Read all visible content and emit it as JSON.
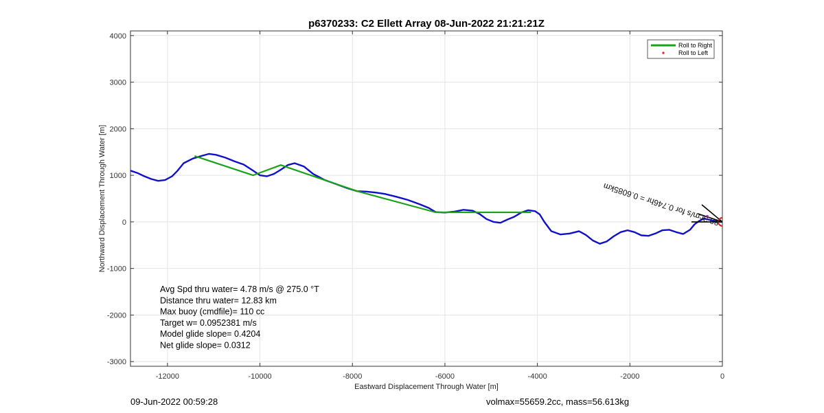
{
  "footer": {
    "date": "09-Jun-2022 00:59:28",
    "volmass": "volmax=55659.2cc, mass=56.613kg"
  },
  "chart_data": {
    "type": "line",
    "title": "p6370233: C2 Ellett Array 08-Jun-2022 21:21:21Z",
    "xlabel": "Eastward Displacement Through Water [m]",
    "ylabel": "Northward Displacement Through Water [m]",
    "xlim": [
      -12800,
      0
    ],
    "ylim": [
      -3100,
      4100
    ],
    "xticks": [
      -12000,
      -10000,
      -8000,
      -6000,
      -4000,
      -2000,
      0
    ],
    "yticks": [
      -3000,
      -2000,
      -1000,
      0,
      1000,
      2000,
      3000,
      4000
    ],
    "grid": true,
    "legend_position": "top-right",
    "legend": [
      {
        "name": "Roll to Right",
        "color": "#1aa31a",
        "style": "line"
      },
      {
        "name": "Roll to Left",
        "color": "#e0201e",
        "style": "dot"
      }
    ],
    "series": [
      {
        "name": "Track",
        "color": "#1010c8",
        "x": [
          -12800,
          -12650,
          -12500,
          -12350,
          -12200,
          -12050,
          -11900,
          -11780,
          -11650,
          -11450,
          -11250,
          -11100,
          -10950,
          -10750,
          -10550,
          -10350,
          -10150,
          -10000,
          -9850,
          -9700,
          -9550,
          -9400,
          -9250,
          -9050,
          -8850,
          -8600,
          -8350,
          -8100,
          -7900,
          -7700,
          -7500,
          -7300,
          -7050,
          -6800,
          -6550,
          -6350,
          -6200,
          -6000,
          -5800,
          -5600,
          -5400,
          -5250,
          -5100,
          -4950,
          -4800,
          -4650,
          -4500,
          -4350,
          -4200,
          -4050,
          -3950,
          -3850,
          -3700,
          -3500,
          -3300,
          -3100,
          -2950,
          -2800,
          -2650,
          -2500,
          -2350,
          -2200,
          -2050,
          -1900,
          -1750,
          -1600,
          -1450,
          -1300,
          -1150,
          -1000,
          -850,
          -700,
          -600,
          -500,
          -400,
          -300,
          -200,
          -100,
          0
        ],
        "y": [
          1100,
          1050,
          980,
          920,
          880,
          900,
          980,
          1100,
          1260,
          1360,
          1420,
          1460,
          1440,
          1380,
          1300,
          1230,
          1100,
          1000,
          980,
          1030,
          1120,
          1220,
          1260,
          1190,
          1030,
          900,
          810,
          720,
          660,
          650,
          630,
          600,
          540,
          470,
          380,
          300,
          210,
          200,
          220,
          260,
          240,
          170,
          60,
          0,
          -20,
          50,
          110,
          200,
          250,
          230,
          160,
          0,
          -200,
          -270,
          -250,
          -200,
          -280,
          -400,
          -470,
          -420,
          -310,
          -220,
          -180,
          -220,
          -290,
          -300,
          -250,
          -180,
          -170,
          -220,
          -260,
          -170,
          -50,
          20,
          70,
          50,
          25,
          10,
          0
        ]
      },
      {
        "name": "Roll to Right",
        "color": "#1aa31a",
        "x": [
          -11400,
          -10150,
          -9550,
          -7900,
          -6200,
          -4150
        ],
        "y": [
          1410,
          1000,
          1220,
          660,
          205,
          205
        ]
      }
    ],
    "annotations": [
      {
        "text": "Avg Spd thru water=  4.78 m/s @ 275.0 °T"
      },
      {
        "text": "Distance thru water= 12.83 km"
      },
      {
        "text": "Max buoy (cmdfile)= 110 cc"
      },
      {
        "text": "Target w= 0.0952381 m/s"
      },
      {
        "text": "Model glide slope= 0.4204"
      },
      {
        "text": "Net glide slope= 0.0312"
      }
    ],
    "current_label": "80.3cm/s for 0.746hr = 0.6085km",
    "marker": {
      "x": 0,
      "y": 0,
      "color": "#e0201e"
    }
  }
}
